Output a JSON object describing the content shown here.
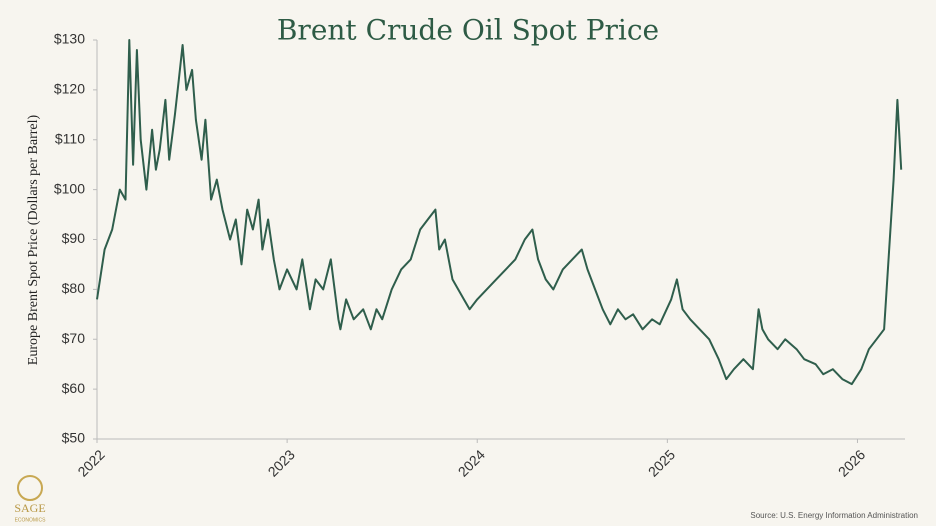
{
  "chart_data": {
    "type": "line",
    "title": "Brent Crude Oil Spot Price",
    "y_label": "Europe Brent Spot Price (Dollars per Barrel)",
    "source": "Source: U.S. Energy Information Administration",
    "logo": "SAGE",
    "logo_sub": "ECONOMICS",
    "xlim": [
      2022,
      2026.25
    ],
    "xticks": [
      2022,
      2023,
      2024,
      2025,
      2026
    ],
    "ylim": [
      50,
      130
    ],
    "yticks": [
      {
        "value": 50,
        "label": "$50"
      },
      {
        "value": 60,
        "label": "$60"
      },
      {
        "value": 70,
        "label": "$70"
      },
      {
        "value": 80,
        "label": "$80"
      },
      {
        "value": 90,
        "label": "$90"
      },
      {
        "value": 100,
        "label": "$100"
      },
      {
        "value": 110,
        "label": "$110"
      },
      {
        "value": 120,
        "label": "$120"
      },
      {
        "value": 130,
        "label": "$130"
      }
    ],
    "series": [
      {
        "name": "Brent",
        "color": "#2f5e4c",
        "x": [
          2022.0,
          2022.04,
          2022.08,
          2022.12,
          2022.15,
          2022.17,
          2022.19,
          2022.21,
          2022.23,
          2022.26,
          2022.29,
          2022.31,
          2022.33,
          2022.36,
          2022.38,
          2022.41,
          2022.43,
          2022.45,
          2022.47,
          2022.5,
          2022.52,
          2022.55,
          2022.57,
          2022.6,
          2022.63,
          2022.66,
          2022.7,
          2022.73,
          2022.76,
          2022.79,
          2022.82,
          2022.85,
          2022.87,
          2022.9,
          2022.93,
          2022.96,
          2023.0,
          2023.05,
          2023.08,
          2023.12,
          2023.15,
          2023.19,
          2023.23,
          2023.27,
          2023.28,
          2023.31,
          2023.35,
          2023.4,
          2023.44,
          2023.47,
          2023.5,
          2023.55,
          2023.6,
          2023.65,
          2023.7,
          2023.74,
          2023.78,
          2023.8,
          2023.83,
          2023.87,
          2023.9,
          2023.93,
          2023.96,
          2024.0,
          2024.05,
          2024.1,
          2024.15,
          2024.2,
          2024.25,
          2024.29,
          2024.32,
          2024.36,
          2024.4,
          2024.45,
          2024.5,
          2024.55,
          2024.58,
          2024.62,
          2024.66,
          2024.7,
          2024.74,
          2024.78,
          2024.82,
          2024.87,
          2024.92,
          2024.96,
          2025.02,
          2025.05,
          2025.08,
          2025.12,
          2025.17,
          2025.22,
          2025.27,
          2025.31,
          2025.35,
          2025.4,
          2025.45,
          2025.48,
          2025.5,
          2025.53,
          2025.58,
          2025.62,
          2025.68,
          2025.72,
          2025.78,
          2025.82,
          2025.87,
          2025.92,
          2025.97,
          2026.02,
          2026.06,
          2026.1,
          2026.14,
          2026.17,
          2026.19,
          2026.21,
          2026.23
        ],
        "values": [
          78,
          88,
          92,
          100,
          98,
          130,
          105,
          128,
          110,
          100,
          112,
          104,
          108,
          118,
          106,
          115,
          122,
          129,
          120,
          124,
          114,
          106,
          114,
          98,
          102,
          96,
          90,
          94,
          85,
          96,
          92,
          98,
          88,
          94,
          86,
          80,
          84,
          80,
          86,
          76,
          82,
          80,
          86,
          74,
          72,
          78,
          74,
          76,
          72,
          76,
          74,
          80,
          84,
          86,
          92,
          94,
          96,
          88,
          90,
          82,
          80,
          78,
          76,
          78,
          80,
          82,
          84,
          86,
          90,
          92,
          86,
          82,
          80,
          84,
          86,
          88,
          84,
          80,
          76,
          73,
          76,
          74,
          75,
          72,
          74,
          73,
          78,
          82,
          76,
          74,
          72,
          70,
          66,
          62,
          64,
          66,
          64,
          76,
          72,
          70,
          68,
          70,
          68,
          66,
          65,
          63,
          64,
          62,
          61,
          64,
          68,
          70,
          72,
          90,
          102,
          118,
          104
        ]
      }
    ]
  }
}
